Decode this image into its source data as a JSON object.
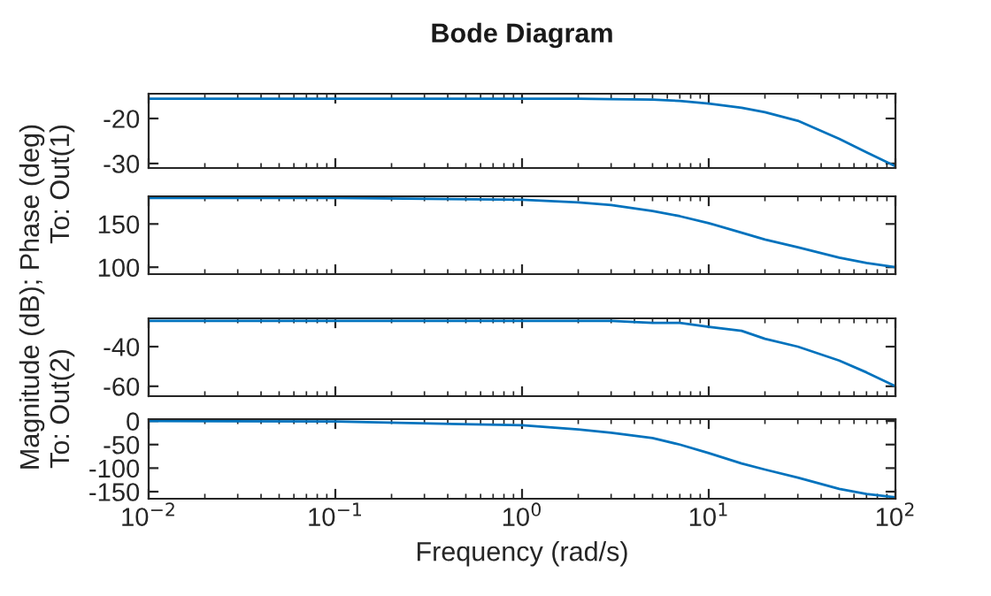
{
  "chart_data": [
    {
      "type": "line",
      "title": "Bode Diagram",
      "ylabel": "To: Out(1)",
      "annotations": [
        "Magnitude (dB); Phase (deg)"
      ],
      "x": [
        0.01,
        0.1,
        1,
        2,
        3,
        5,
        7,
        10,
        15,
        20,
        30,
        50,
        70,
        100
      ],
      "series": [
        {
          "color": "#0072bd",
          "values": [
            -15.6,
            -15.6,
            -15.6,
            -15.6,
            -15.7,
            -15.8,
            -16.1,
            -16.7,
            -17.6,
            -18.6,
            -20.5,
            -24.5,
            -27.5,
            -30.6
          ]
        }
      ],
      "xlim": [
        0.01,
        100
      ],
      "xticks": [
        {
          "value": 0.01,
          "label": null
        },
        {
          "value": 0.1,
          "label": null
        },
        {
          "value": 1,
          "label": null
        },
        {
          "value": 10,
          "label": null
        },
        {
          "value": 100,
          "label": null
        }
      ],
      "ylim": [
        -31,
        -14.5
      ],
      "yticks": [
        -30,
        -20
      ],
      "log": "x",
      "tick_labels": "y"
    },
    {
      "type": "line",
      "x": [
        0.01,
        0.1,
        1,
        2,
        3,
        5,
        7,
        10,
        15,
        20,
        30,
        50,
        70,
        100
      ],
      "series": [
        {
          "color": "#0072bd",
          "values": [
            180,
            180,
            178,
            175,
            172,
            165,
            159,
            151,
            140,
            132,
            123,
            111,
            105,
            100
          ]
        }
      ],
      "xlim": [
        0.01,
        100
      ],
      "xticks": [
        {
          "value": 0.01,
          "label": null
        },
        {
          "value": 0.1,
          "label": null
        },
        {
          "value": 1,
          "label": null
        },
        {
          "value": 10,
          "label": null
        },
        {
          "value": 100,
          "label": null
        }
      ],
      "ylim": [
        92,
        182
      ],
      "yticks": [
        100,
        150
      ],
      "log": "x",
      "tick_labels": "y"
    },
    {
      "type": "line",
      "ylabel": "To: Out(2)",
      "x": [
        0.01,
        0.1,
        1,
        2,
        3,
        5,
        7,
        10,
        15,
        20,
        30,
        50,
        70,
        100
      ],
      "series": [
        {
          "color": "#0072bd",
          "values": [
            -27,
            -27,
            -27,
            -27,
            -27,
            -28,
            -28,
            -30,
            -32,
            -36,
            -40,
            -47,
            -53,
            -60
          ]
        }
      ],
      "xlim": [
        0.01,
        100
      ],
      "xticks": [
        {
          "value": 0.01,
          "label": null
        },
        {
          "value": 0.1,
          "label": null
        },
        {
          "value": 1,
          "label": null
        },
        {
          "value": 10,
          "label": null
        },
        {
          "value": 100,
          "label": null
        }
      ],
      "ylim": [
        -65,
        -25.7
      ],
      "yticks": [
        -60,
        -40
      ],
      "log": "x",
      "tick_labels": "y"
    },
    {
      "type": "line",
      "xlabel": "Frequency (rad/s)",
      "x": [
        0.01,
        0.1,
        1,
        2,
        3,
        5,
        7,
        10,
        15,
        20,
        30,
        50,
        70,
        100
      ],
      "series": [
        {
          "color": "#0072bd",
          "values": [
            0,
            -1,
            -9,
            -18,
            -25,
            -36,
            -50,
            -68,
            -90,
            -103,
            -120,
            -144,
            -155,
            -162
          ]
        }
      ],
      "xlim": [
        0.01,
        100
      ],
      "xticks": [
        {
          "value": 0.01,
          "label": "10$^{−2}$"
        },
        {
          "value": 0.1,
          "label": "10$^{−1}$"
        },
        {
          "value": 1,
          "label": "10$^{0}$"
        },
        {
          "value": 10,
          "label": "10$^{1}$"
        },
        {
          "value": 100,
          "label": "10$^{2}$"
        }
      ],
      "ylim": [
        -165,
        4
      ],
      "yticks": [
        -150,
        -100,
        -50,
        0
      ],
      "log": "x"
    }
  ]
}
